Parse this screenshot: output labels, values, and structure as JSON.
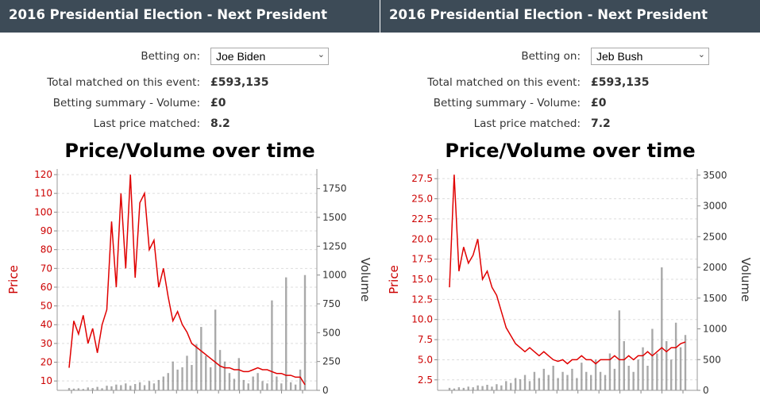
{
  "panels": [
    {
      "header_title": "2016 Presidential Election - Next President",
      "betting_on_label": "Betting on:",
      "betting_on_value": "Joe Biden",
      "total_matched_label": "Total matched on this event:",
      "total_matched_value": "£593,135",
      "summary_label": "Betting summary - Volume:",
      "summary_value": "£0",
      "last_price_label": "Last price matched:",
      "last_price_value": "8.2"
    },
    {
      "header_title": "2016 Presidential Election - Next President",
      "betting_on_label": "Betting on:",
      "betting_on_value": "Jeb Bush",
      "total_matched_label": "Total matched on this event:",
      "total_matched_value": "£593,135",
      "summary_label": "Betting summary - Volume:",
      "summary_value": "£0",
      "last_price_label": "Last price matched:",
      "last_price_value": "7.2"
    }
  ],
  "colors": {
    "header_bg": "#3d4b57",
    "price_line": "#e00000",
    "volume_bar": "#8c8c8c",
    "grid": "#dddddd"
  },
  "icons": {
    "select_caret": "chevron-down-icon"
  },
  "chart_data": [
    {
      "type": "line",
      "title": "Price/Volume over time",
      "ylabel": "Price",
      "y2label": "Volume",
      "ylim": [
        5,
        123
      ],
      "y2lim": [
        0,
        1920
      ],
      "yticks": [
        "10",
        "20",
        "30",
        "40",
        "50",
        "60",
        "70",
        "80",
        "90",
        "100",
        "110",
        "120"
      ],
      "y2ticks": [
        "0",
        "250",
        "500",
        "750",
        "1000",
        "1250",
        "1500",
        "1750"
      ],
      "grid": true,
      "price_series": {
        "name": "Price",
        "x": [
          0,
          2,
          4,
          6,
          8,
          10,
          12,
          14,
          16,
          18,
          20,
          22,
          24,
          26,
          28,
          30,
          32,
          34,
          36,
          38,
          40,
          42,
          44,
          46,
          48,
          50,
          52,
          54,
          56,
          58,
          60,
          62,
          64,
          66,
          68,
          70,
          72,
          74,
          76,
          78,
          80,
          82,
          84,
          86,
          88,
          90,
          92,
          94,
          96,
          98,
          100
        ],
        "values": [
          17,
          42,
          35,
          45,
          30,
          38,
          25,
          40,
          48,
          95,
          60,
          110,
          70,
          120,
          65,
          105,
          110,
          80,
          85,
          60,
          70,
          55,
          42,
          47,
          40,
          36,
          30,
          28,
          26,
          24,
          22,
          20,
          18,
          17,
          17,
          16,
          16,
          15,
          15,
          16,
          17,
          16,
          16,
          15,
          14,
          14,
          13,
          13,
          12,
          12,
          8
        ]
      },
      "volume_series": {
        "name": "Volume",
        "values": [
          20,
          15,
          18,
          12,
          25,
          20,
          30,
          18,
          40,
          35,
          50,
          45,
          60,
          40,
          55,
          70,
          45,
          80,
          60,
          90,
          120,
          150,
          250,
          180,
          200,
          300,
          220,
          400,
          550,
          300,
          200,
          700,
          350,
          250,
          150,
          100,
          280,
          90,
          60,
          120,
          150,
          80,
          60,
          780,
          120,
          60,
          980,
          70,
          50,
          180,
          1000
        ]
      }
    },
    {
      "type": "line",
      "title": "Price/Volume over time",
      "ylabel": "Price",
      "y2label": "Volume",
      "ylim": [
        1.2,
        28.7
      ],
      "y2lim": [
        0,
        3600
      ],
      "yticks": [
        "2.5",
        "5.0",
        "7.5",
        "10.0",
        "12.5",
        "15.0",
        "17.5",
        "20.0",
        "22.5",
        "25.0",
        "27.5"
      ],
      "y2ticks": [
        "0",
        "500",
        "1000",
        "1500",
        "2000",
        "2500",
        "3000",
        "3500"
      ],
      "grid": true,
      "price_series": {
        "name": "Price",
        "x": [
          0,
          2,
          4,
          6,
          8,
          10,
          12,
          14,
          16,
          18,
          20,
          22,
          24,
          26,
          28,
          30,
          32,
          34,
          36,
          38,
          40,
          42,
          44,
          46,
          48,
          50,
          52,
          54,
          56,
          58,
          60,
          62,
          64,
          66,
          68,
          70,
          72,
          74,
          76,
          78,
          80,
          82,
          84,
          86,
          88,
          90,
          92,
          94,
          96,
          98,
          100
        ],
        "values": [
          14,
          28,
          16,
          19,
          17,
          18,
          20,
          15,
          16,
          14,
          13,
          11,
          9,
          8,
          7,
          6.5,
          6,
          6.5,
          6,
          5.5,
          6,
          5.5,
          5,
          4.8,
          5,
          4.5,
          5,
          5,
          5.5,
          5,
          5,
          4.5,
          5,
          5,
          5,
          5.5,
          5,
          5,
          5.5,
          5,
          5.5,
          5.5,
          6,
          5.5,
          6,
          6.5,
          6,
          6.5,
          6.5,
          7,
          7.2
        ]
      },
      "volume_series": {
        "name": "Volume",
        "values": [
          40,
          30,
          50,
          40,
          60,
          50,
          80,
          70,
          90,
          60,
          100,
          80,
          150,
          120,
          200,
          180,
          250,
          150,
          300,
          200,
          350,
          250,
          400,
          200,
          300,
          250,
          350,
          200,
          450,
          300,
          250,
          500,
          300,
          250,
          600,
          350,
          1300,
          800,
          400,
          300,
          500,
          700,
          400,
          1000,
          600,
          2000,
          800,
          500,
          1100,
          700,
          900
        ]
      }
    }
  ]
}
